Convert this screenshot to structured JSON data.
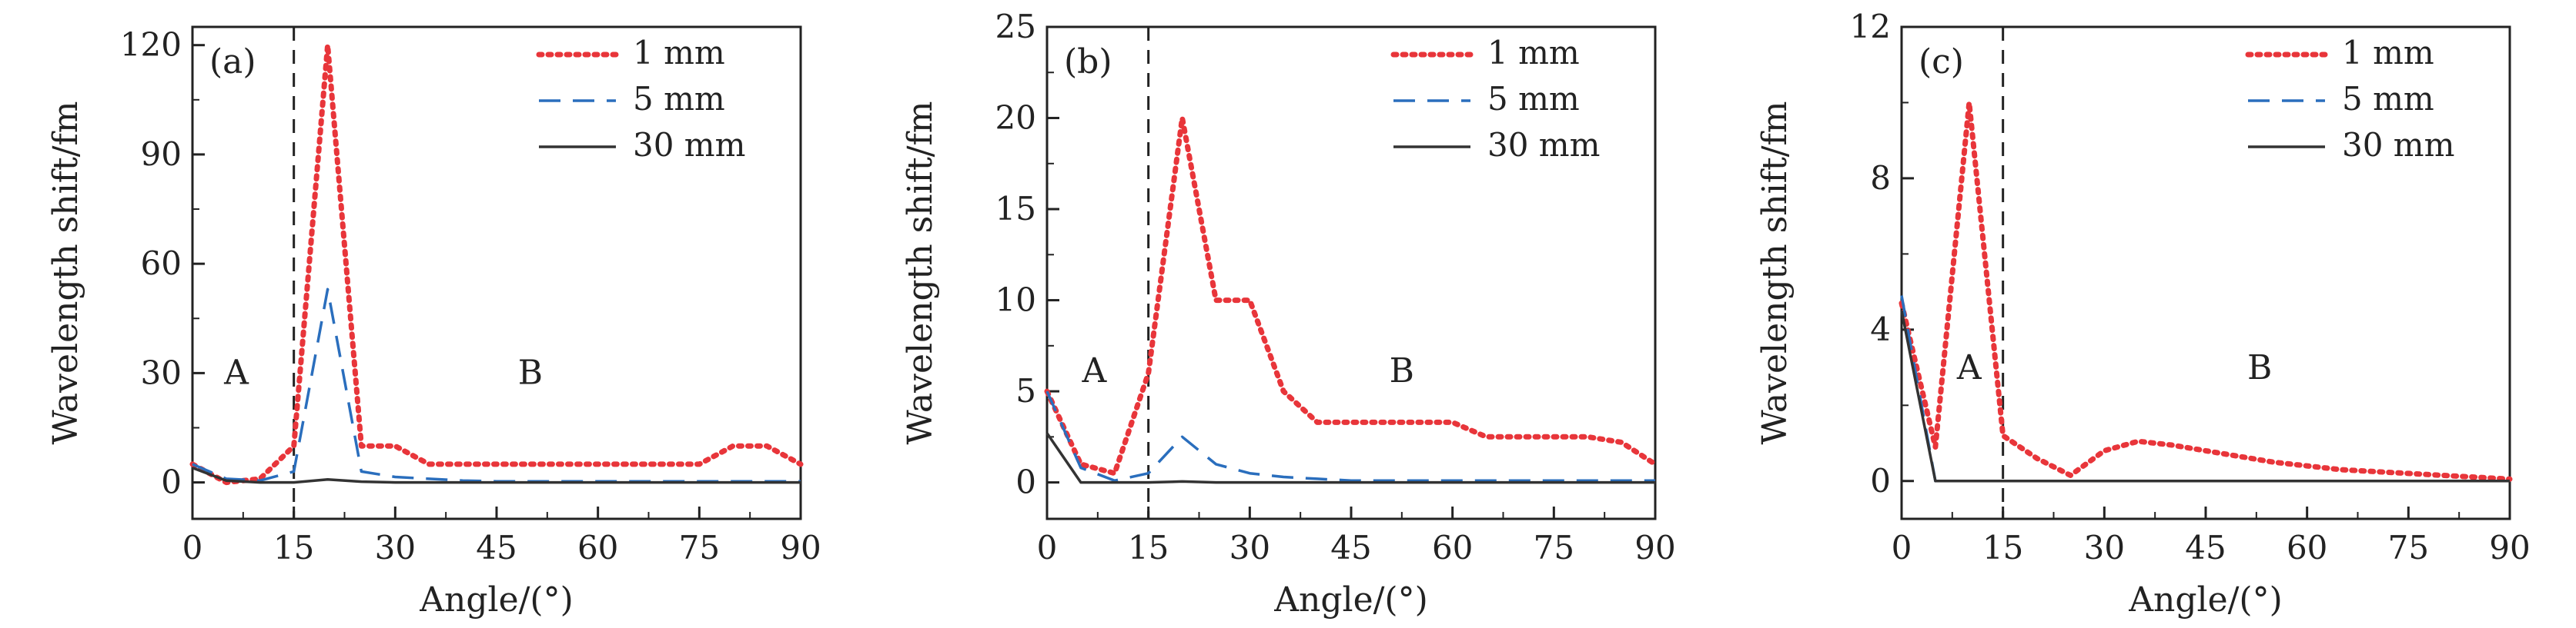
{
  "chart_data": [
    {
      "type": "line",
      "panel_label": "(a)",
      "xlabel": "Angle/(°)",
      "ylabel": "Wavelength shift/fm",
      "xlim": [
        0,
        90
      ],
      "ylim": [
        -10,
        125
      ],
      "xticks": [
        0,
        15,
        30,
        45,
        60,
        75,
        90
      ],
      "yticks": [
        0,
        30,
        60,
        90,
        120
      ],
      "divider_x": 15,
      "region_labels": [
        {
          "text": "A",
          "x": 6.5,
          "y": 27
        },
        {
          "text": "B",
          "x": 50,
          "y": 27
        }
      ],
      "legend_position": "top-right",
      "series": [
        {
          "name": "1 mm",
          "color": "#e8353a",
          "style": "dotted",
          "x": [
            0,
            5,
            10,
            15,
            20,
            25,
            30,
            35,
            40,
            45,
            50,
            55,
            60,
            65,
            70,
            75,
            80,
            85,
            90
          ],
          "y": [
            5,
            0,
            1,
            10,
            120,
            10,
            10,
            5,
            5,
            5,
            5,
            5,
            5,
            5,
            5,
            5,
            10,
            10,
            5
          ]
        },
        {
          "name": "5 mm",
          "color": "#2a6ebd",
          "style": "dashed",
          "x": [
            0,
            5,
            10,
            15,
            20,
            25,
            30,
            35,
            40,
            45,
            50,
            55,
            60,
            65,
            70,
            75,
            80,
            85,
            90
          ],
          "y": [
            5,
            1,
            0.5,
            3,
            53,
            3,
            1.5,
            1,
            0.5,
            0.3,
            0.3,
            0.3,
            0.3,
            0.3,
            0.3,
            0.3,
            0.3,
            0.3,
            0.3
          ]
        },
        {
          "name": "30 mm",
          "color": "#333333",
          "style": "solid",
          "x": [
            0,
            5,
            10,
            15,
            20,
            25,
            30,
            35,
            40,
            45,
            50,
            55,
            60,
            65,
            70,
            75,
            80,
            85,
            90
          ],
          "y": [
            4,
            0.5,
            0,
            0,
            0.8,
            0.2,
            0,
            0,
            0,
            0,
            0,
            0,
            0,
            0,
            0,
            0,
            0,
            0,
            0
          ]
        }
      ]
    },
    {
      "type": "line",
      "panel_label": "(b)",
      "xlabel": "Angle/(°)",
      "ylabel": "Wavelength shift/fm",
      "xlim": [
        0,
        90
      ],
      "ylim": [
        -2,
        25
      ],
      "xticks": [
        0,
        15,
        30,
        45,
        60,
        75,
        90
      ],
      "yticks": [
        0,
        5,
        10,
        15,
        20,
        25
      ],
      "divider_x": 15,
      "region_labels": [
        {
          "text": "A",
          "x": 7,
          "y": 5.5
        },
        {
          "text": "B",
          "x": 52.5,
          "y": 5.5
        }
      ],
      "legend_position": "top-right",
      "series": [
        {
          "name": "1 mm",
          "color": "#e8353a",
          "style": "dotted",
          "x": [
            0,
            5,
            10,
            15,
            20,
            25,
            30,
            35,
            40,
            45,
            50,
            55,
            60,
            65,
            70,
            75,
            80,
            85,
            90
          ],
          "y": [
            5,
            1,
            0.5,
            6,
            20,
            10,
            10,
            5,
            3.3,
            3.3,
            3.3,
            3.3,
            3.3,
            2.5,
            2.5,
            2.5,
            2.5,
            2.2,
            1
          ]
        },
        {
          "name": "5 mm",
          "color": "#2a6ebd",
          "style": "dashed",
          "x": [
            0,
            5,
            10,
            15,
            20,
            25,
            30,
            35,
            40,
            45,
            50,
            55,
            60,
            65,
            70,
            75,
            80,
            85,
            90
          ],
          "y": [
            5,
            0.8,
            0.1,
            0.5,
            2.5,
            1,
            0.5,
            0.3,
            0.2,
            0.1,
            0.1,
            0.1,
            0.1,
            0.1,
            0.1,
            0.1,
            0.1,
            0.1,
            0.1
          ]
        },
        {
          "name": "30 mm",
          "color": "#333333",
          "style": "solid",
          "x": [
            0,
            5,
            10,
            15,
            20,
            25,
            30,
            35,
            40,
            45,
            50,
            55,
            60,
            65,
            70,
            75,
            80,
            85,
            90
          ],
          "y": [
            2.7,
            0,
            0,
            0,
            0.05,
            0,
            0,
            0,
            0,
            0,
            0,
            0,
            0,
            0,
            0,
            0,
            0,
            0,
            0
          ]
        }
      ]
    },
    {
      "type": "line",
      "panel_label": "(c)",
      "xlabel": "Angle/(°)",
      "ylabel": "Wavelength shift/fm",
      "xlim": [
        0,
        90
      ],
      "ylim": [
        -1,
        12
      ],
      "xticks": [
        0,
        15,
        30,
        45,
        60,
        75,
        90
      ],
      "yticks": [
        0,
        4,
        8,
        12
      ],
      "divider_x": 15,
      "region_labels": [
        {
          "text": "A",
          "x": 10,
          "y": 2.7
        },
        {
          "text": "B",
          "x": 53,
          "y": 2.7
        }
      ],
      "legend_position": "top-right",
      "series": [
        {
          "name": "1 mm",
          "color": "#e8353a",
          "style": "dotted",
          "x": [
            0,
            5,
            10,
            15,
            20,
            25,
            30,
            35,
            40,
            45,
            50,
            55,
            60,
            65,
            70,
            75,
            80,
            85,
            90
          ],
          "y": [
            4.7,
            0.9,
            10,
            1.2,
            0.6,
            0.15,
            0.8,
            1.05,
            0.95,
            0.8,
            0.65,
            0.5,
            0.4,
            0.3,
            0.25,
            0.2,
            0.15,
            0.1,
            0.05
          ]
        },
        {
          "name": "5 mm",
          "color": "#2a6ebd",
          "style": "dashed",
          "x": [
            0,
            5,
            10,
            15,
            20,
            25,
            30,
            35,
            40,
            45,
            50,
            55,
            60,
            65,
            70,
            75,
            80,
            85,
            90
          ],
          "y": [
            4.9,
            0,
            0,
            0,
            0,
            0,
            0,
            0,
            0,
            0,
            0,
            0,
            0,
            0,
            0,
            0,
            0,
            0,
            0
          ]
        },
        {
          "name": "30 mm",
          "color": "#333333",
          "style": "solid",
          "x": [
            0,
            5,
            10,
            15,
            20,
            25,
            30,
            35,
            40,
            45,
            50,
            55,
            60,
            65,
            70,
            75,
            80,
            85,
            90
          ],
          "y": [
            4.5,
            0,
            0,
            0,
            0,
            0,
            0,
            0,
            0,
            0,
            0,
            0,
            0,
            0,
            0,
            0,
            0,
            0,
            0
          ]
        }
      ]
    }
  ]
}
